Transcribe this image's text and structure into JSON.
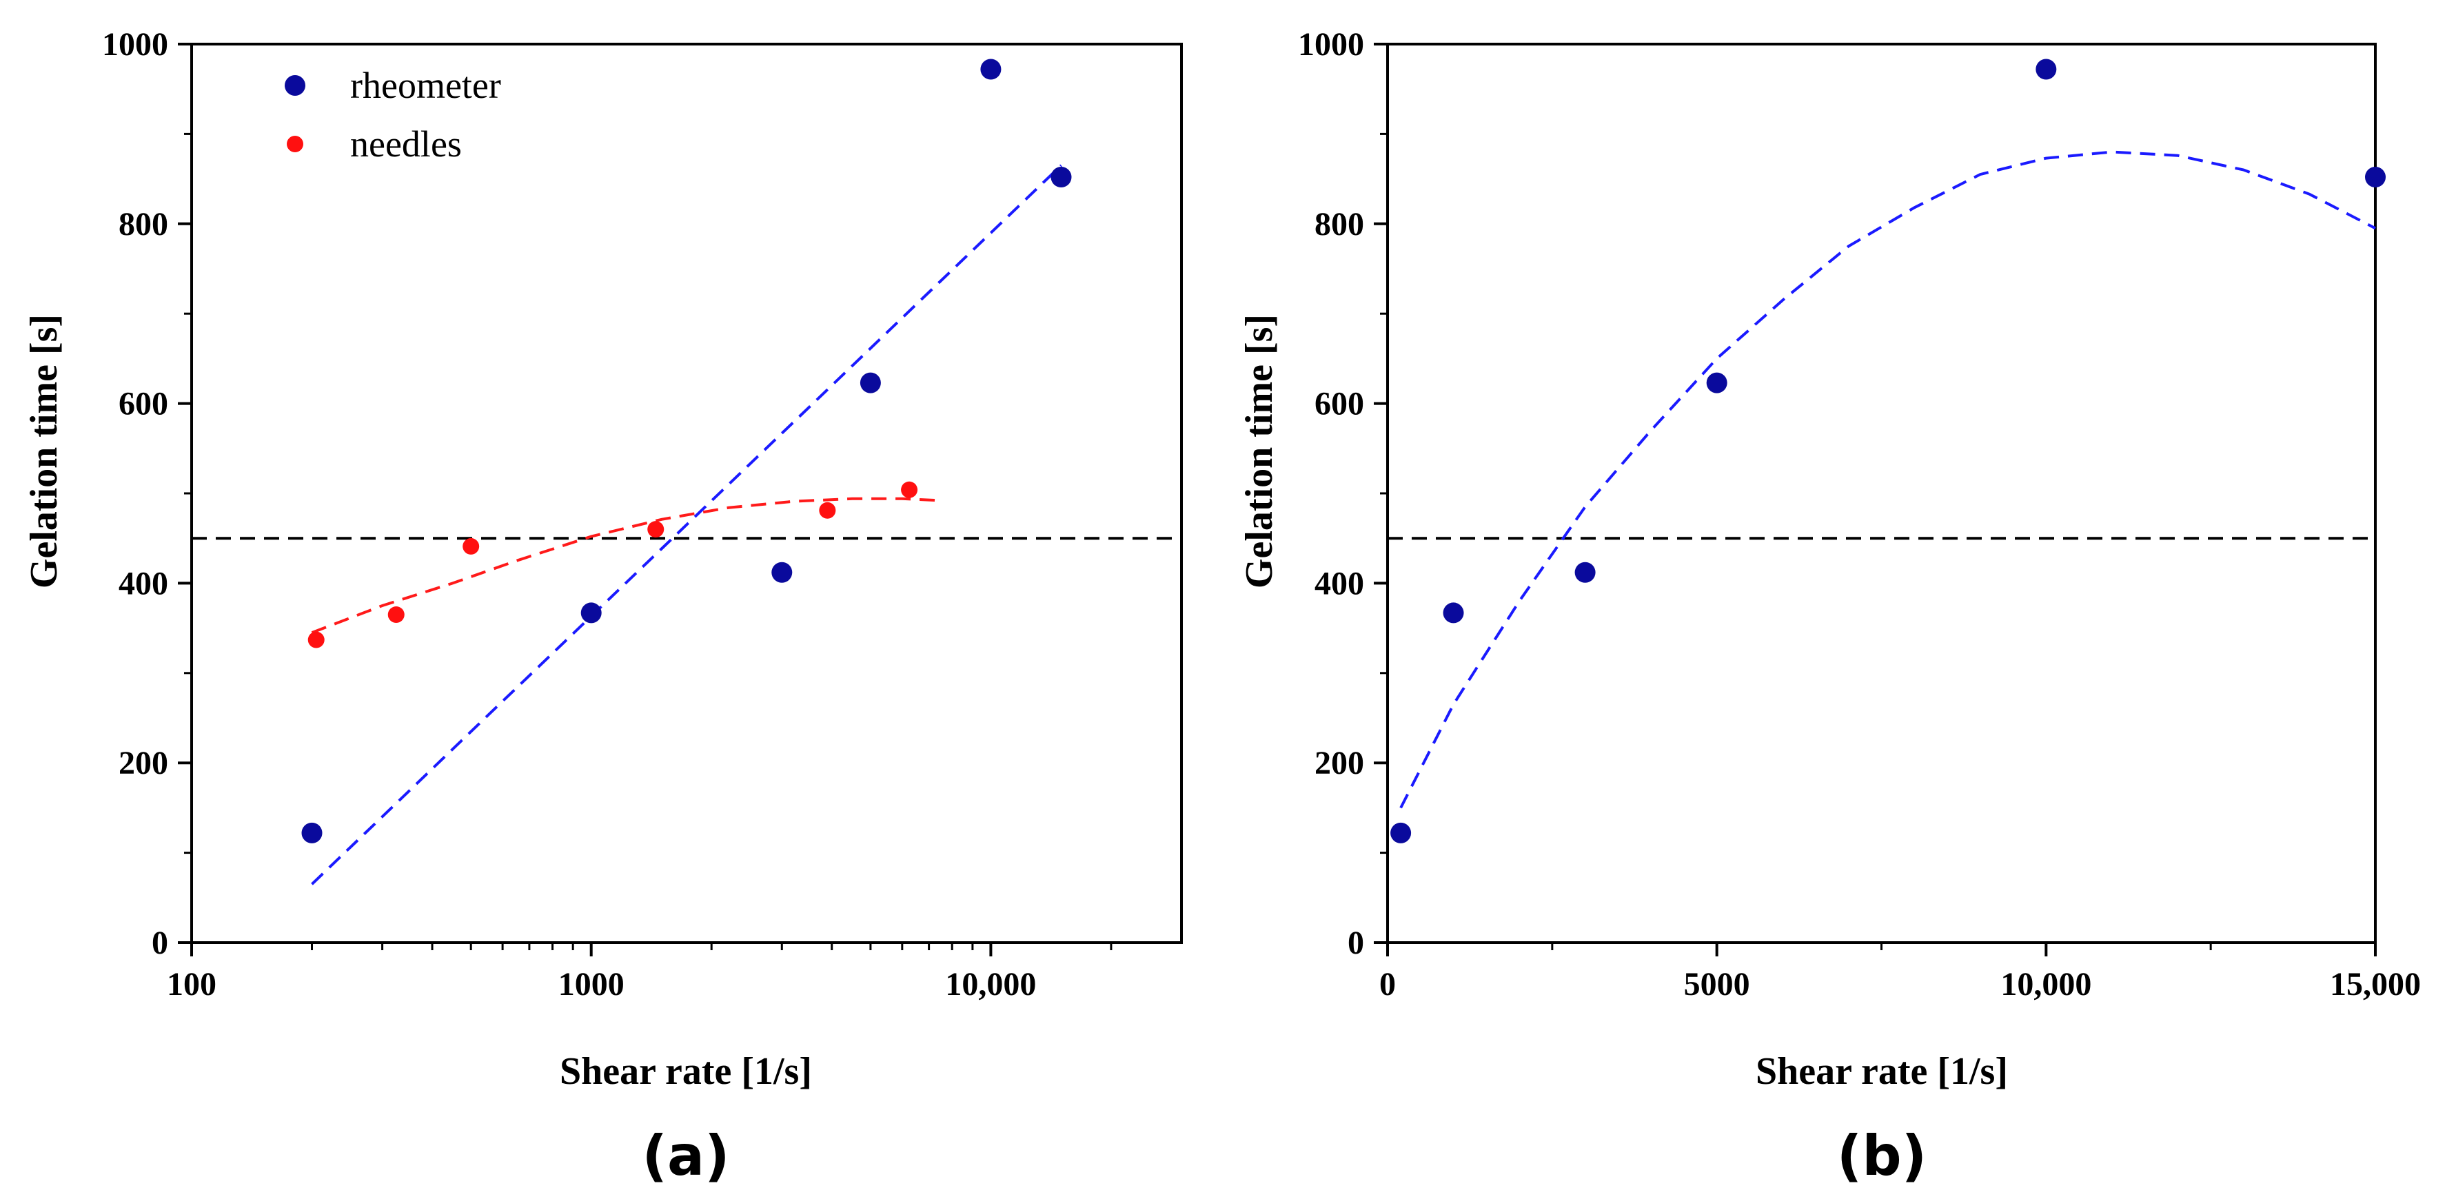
{
  "figure": {
    "panels": [
      "(a)",
      "(b)"
    ]
  },
  "chart_data": [
    {
      "type": "scatter",
      "panel_label": "(a)",
      "xlabel": "Shear rate [1/s]",
      "ylabel": "Gelation time [s]",
      "xscale": "log",
      "xlim": [
        100,
        30000
      ],
      "ylim": [
        0,
        1000
      ],
      "xticks": [
        100,
        1000,
        10000
      ],
      "xtick_labels": [
        "100",
        "1000",
        "10,000"
      ],
      "yticks": [
        0,
        200,
        400,
        600,
        800,
        1000
      ],
      "ytick_labels": [
        "0",
        "200",
        "400",
        "600",
        "800",
        "1000"
      ],
      "legend": {
        "position": "top-left",
        "entries": [
          "rheometer",
          "needles"
        ]
      },
      "series": [
        {
          "name": "rheometer",
          "color": "#0a0a9c",
          "x": [
            200,
            1000,
            3000,
            5000,
            10000,
            15000
          ],
          "y": [
            122,
            367,
            412,
            623,
            972,
            852
          ]
        },
        {
          "name": "needles",
          "color": "#ff1010",
          "x": [
            205,
            325,
            500,
            1450,
            3900,
            6250
          ],
          "y": [
            337,
            365,
            441,
            460,
            481,
            504
          ]
        }
      ],
      "fits": [
        {
          "name": "rheometer-fit",
          "color": "#1a1aff",
          "style": "dashed",
          "x": [
            200,
            15000
          ],
          "y": [
            65,
            865
          ]
        },
        {
          "name": "needles-fit",
          "color": "#ff1a1a",
          "style": "dashed",
          "x": [
            200,
            300,
            450,
            650,
            1000,
            1500,
            2200,
            3200,
            4500,
            6000,
            7500
          ],
          "y": [
            345,
            375,
            400,
            425,
            452,
            471,
            484,
            491,
            494,
            494,
            492
          ]
        }
      ],
      "reference_line": {
        "y": 450,
        "color": "#000000",
        "style": "dashed"
      }
    },
    {
      "type": "scatter",
      "panel_label": "(b)",
      "xlabel": "Shear rate [1/s]",
      "ylabel": "Gelation time [s]",
      "xscale": "linear",
      "xlim": [
        0,
        15000
      ],
      "ylim": [
        0,
        1000
      ],
      "xticks": [
        0,
        5000,
        10000,
        15000
      ],
      "xtick_labels": [
        "0",
        "5000",
        "10,000",
        "15,000"
      ],
      "yticks": [
        0,
        200,
        400,
        600,
        800,
        1000
      ],
      "ytick_labels": [
        "0",
        "200",
        "400",
        "600",
        "800",
        "1000"
      ],
      "series": [
        {
          "name": "rheometer",
          "color": "#0a0a9c",
          "x": [
            200,
            1000,
            3000,
            5000,
            10000,
            15000
          ],
          "y": [
            122,
            367,
            412,
            623,
            972,
            852
          ]
        }
      ],
      "fits": [
        {
          "name": "rheometer-quadratic-fit",
          "color": "#1a1aff",
          "style": "dashed",
          "x": [
            200,
            1000,
            2000,
            3000,
            4000,
            5000,
            6000,
            7000,
            8000,
            9000,
            10000,
            11000,
            12000,
            13000,
            14000,
            15000
          ],
          "y": [
            150,
            265,
            380,
            485,
            570,
            650,
            715,
            775,
            818,
            855,
            873,
            880,
            876,
            860,
            833,
            795
          ]
        }
      ],
      "reference_line": {
        "y": 450,
        "color": "#000000",
        "style": "dashed"
      }
    }
  ]
}
